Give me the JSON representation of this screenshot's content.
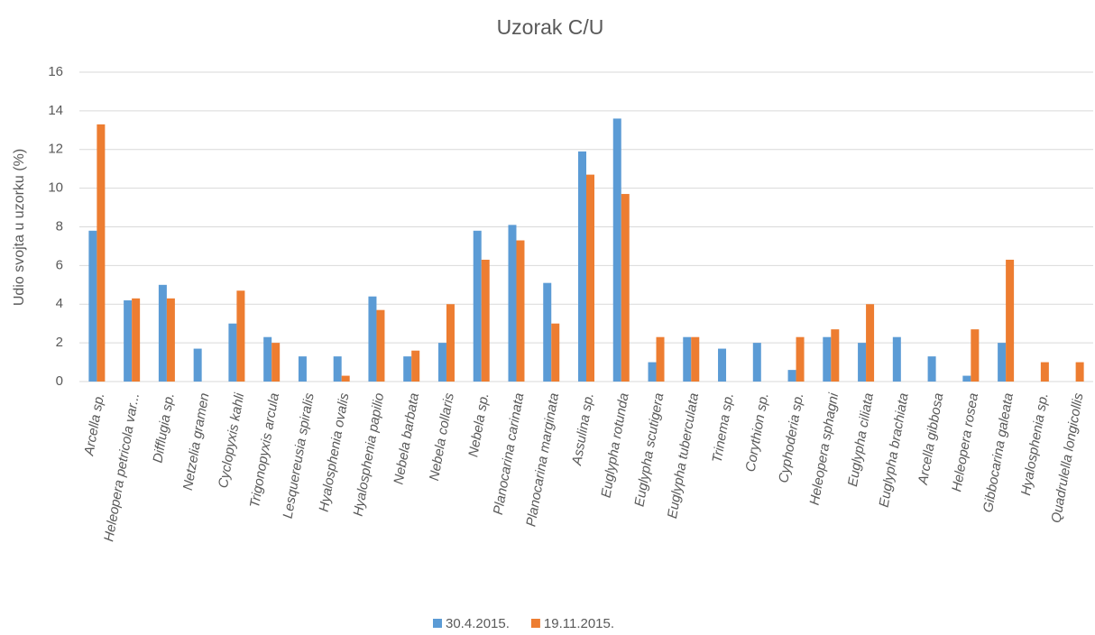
{
  "chart_data": {
    "type": "bar",
    "title": "Uzorak C/U",
    "y_label": "Udio svojta u uzorku (%)",
    "categories": [
      "Arcella sp.",
      "Heleopera petricola var...",
      "Difflugia sp.",
      "Netzelia gramen",
      "Cyclopyxis kahli",
      "Trigonopyxis arcula",
      "Lesquereusia spiralis",
      "Hyalosphenia ovalis",
      "Hyalosphenia papilio",
      "Nebela barbata",
      "Nebela collaris",
      "Nebela sp.",
      "Planocarina carinata",
      "Planocarina marginata",
      "Assulina sp.",
      "Euglypha rotunda",
      "Euglypha scutigera",
      "Euglypha tuberculata",
      "Trinema sp.",
      "Corythion sp.",
      "Cyphoderia sp.",
      "Heleopera sphagni",
      "Euglypha ciliata",
      "Euglypha brachiata",
      "Arcella gibbosa",
      "Heleopera rosea",
      "Gibbocarina galeata",
      "Hyalosphenia sp.",
      "Quadrulella longicollis"
    ],
    "series": [
      {
        "name": "30.4.2015.",
        "color": "#5b9bd5",
        "values": [
          7.8,
          4.2,
          5.0,
          1.7,
          3.0,
          2.3,
          1.3,
          1.3,
          4.4,
          1.3,
          2.0,
          7.8,
          8.1,
          5.1,
          11.9,
          13.6,
          1.0,
          2.3,
          1.7,
          2.0,
          0.6,
          2.3,
          2.0,
          2.3,
          1.3,
          0.3,
          2.0,
          0,
          0
        ]
      },
      {
        "name": "19.11.2015.",
        "color": "#ed7d31",
        "values": [
          13.3,
          4.3,
          4.3,
          0,
          4.7,
          2.0,
          0,
          0.3,
          3.7,
          1.6,
          4.0,
          6.3,
          7.3,
          3.0,
          10.7,
          9.7,
          2.3,
          2.3,
          0,
          0,
          2.3,
          2.7,
          4.0,
          0,
          0,
          2.7,
          6.3,
          1.0,
          1.0
        ]
      }
    ],
    "ylim": [
      0,
      16
    ],
    "yticks": [
      0,
      2,
      4,
      6,
      8,
      10,
      12,
      14,
      16
    ],
    "grid": true,
    "legend": "bottom"
  }
}
